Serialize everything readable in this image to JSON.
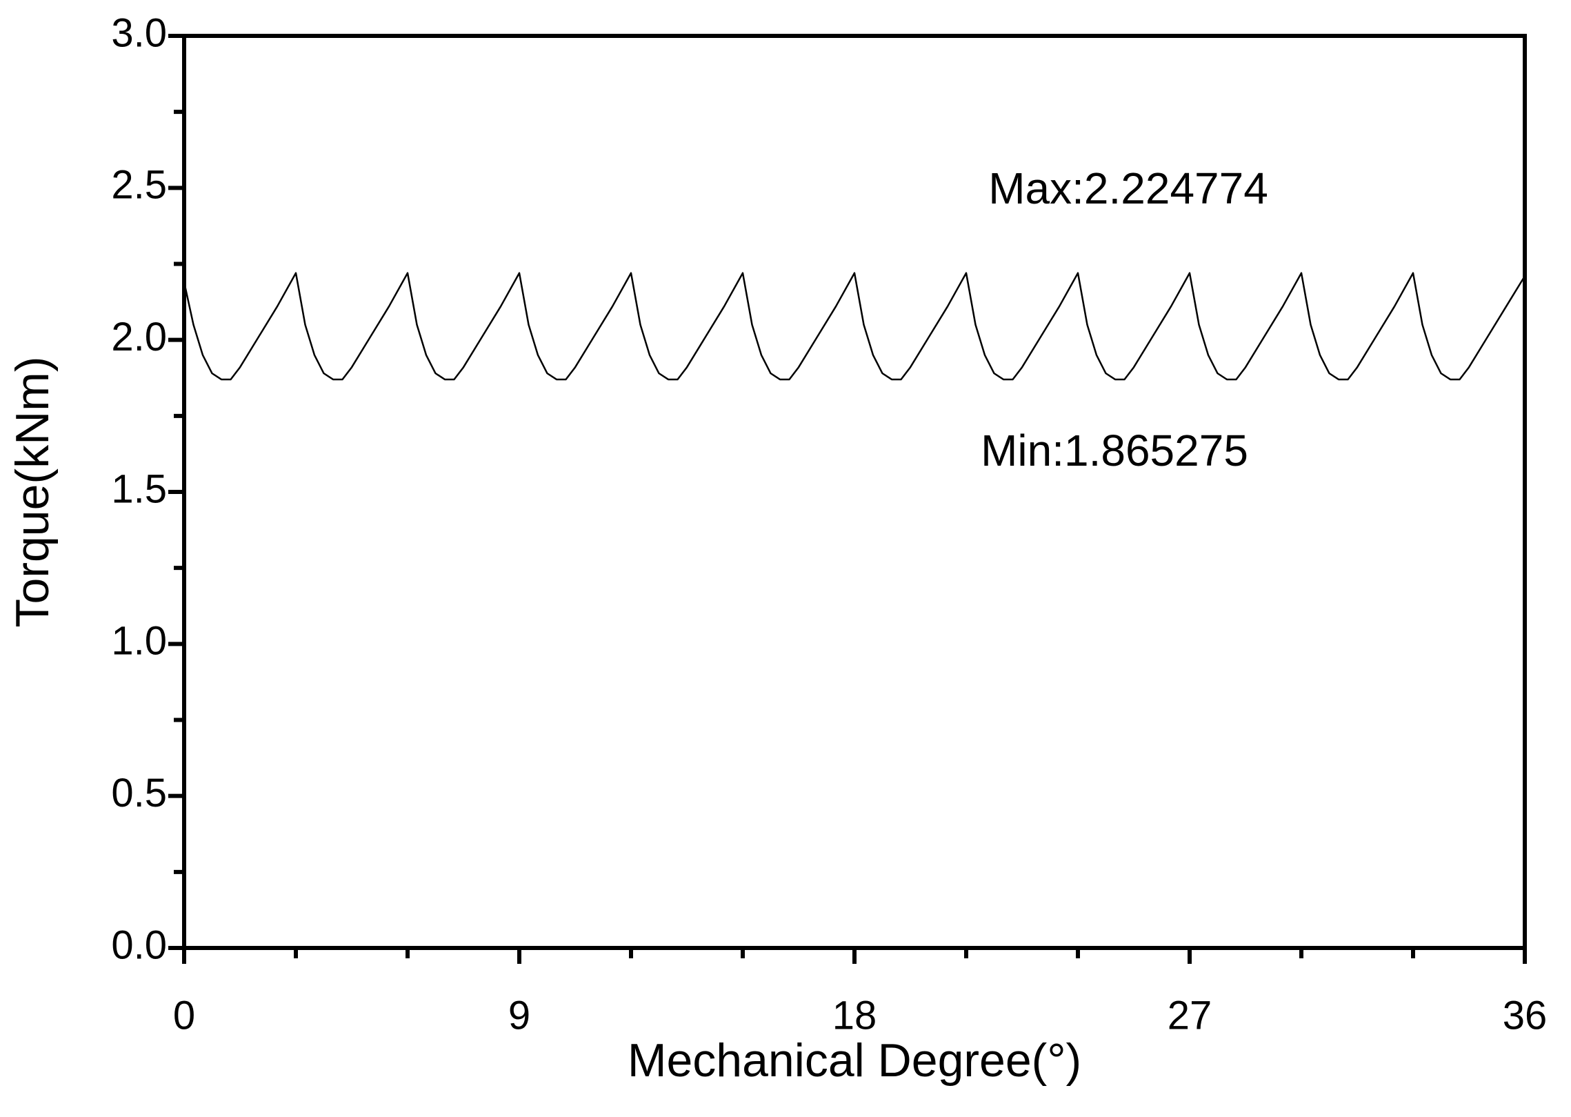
{
  "chart_data": {
    "type": "line",
    "xlabel": "Mechanical Degree(°)",
    "ylabel": "Torque(kNm)",
    "annotations": [
      "Max:2.224774",
      "Min:1.865275"
    ],
    "x": [
      0,
      0.25,
      0.5,
      0.75,
      1,
      1.25,
      1.5,
      2,
      2.5,
      3,
      3.25,
      3.5,
      3.75,
      4,
      4.25,
      4.5,
      5,
      5.5,
      6,
      6.25,
      6.5,
      6.75,
      7,
      7.25,
      7.5,
      8,
      8.5,
      9,
      9.25,
      9.5,
      9.75,
      10,
      10.25,
      10.5,
      11,
      11.5,
      12,
      12.25,
      12.5,
      12.75,
      13,
      13.25,
      13.5,
      14,
      14.5,
      15,
      15.25,
      15.5,
      15.75,
      16,
      16.25,
      16.5,
      17,
      17.5,
      18,
      18.25,
      18.5,
      18.75,
      19,
      19.25,
      19.5,
      20,
      20.5,
      21,
      21.25,
      21.5,
      21.75,
      22,
      22.25,
      22.5,
      23,
      23.5,
      24,
      24.25,
      24.5,
      24.75,
      25,
      25.25,
      25.5,
      26,
      26.5,
      27,
      27.25,
      27.5,
      27.75,
      28,
      28.25,
      28.5,
      29,
      29.5,
      30,
      30.25,
      30.5,
      30.75,
      31,
      31.25,
      31.5,
      32,
      32.5,
      33,
      33.25,
      33.5,
      33.75,
      34,
      34.25,
      34.5,
      35,
      35.5,
      36
    ],
    "series": [
      {
        "color": "#000000",
        "values": [
          2.19,
          2.05,
          1.95,
          1.89,
          1.87,
          1.87,
          1.91,
          2.01,
          2.11,
          2.22,
          2.05,
          1.95,
          1.89,
          1.87,
          1.87,
          1.91,
          2.01,
          2.11,
          2.22,
          2.05,
          1.95,
          1.89,
          1.87,
          1.87,
          1.91,
          2.01,
          2.11,
          2.22,
          2.05,
          1.95,
          1.89,
          1.87,
          1.87,
          1.91,
          2.01,
          2.11,
          2.22,
          2.05,
          1.95,
          1.89,
          1.87,
          1.87,
          1.91,
          2.01,
          2.11,
          2.22,
          2.05,
          1.95,
          1.89,
          1.87,
          1.87,
          1.91,
          2.01,
          2.11,
          2.22,
          2.05,
          1.95,
          1.89,
          1.87,
          1.87,
          1.91,
          2.01,
          2.11,
          2.22,
          2.05,
          1.95,
          1.89,
          1.87,
          1.87,
          1.91,
          2.01,
          2.11,
          2.22,
          2.05,
          1.95,
          1.89,
          1.87,
          1.87,
          1.91,
          2.01,
          2.11,
          2.22,
          2.05,
          1.95,
          1.89,
          1.87,
          1.87,
          1.91,
          2.01,
          2.11,
          2.22,
          2.05,
          1.95,
          1.89,
          1.87,
          1.87,
          1.91,
          2.01,
          2.11,
          2.22,
          2.05,
          1.95,
          1.89,
          1.87,
          1.87,
          1.91,
          2.01,
          2.11,
          2.21
        ]
      }
    ],
    "xlim": [
      0,
      36
    ],
    "xticks": [
      0,
      9,
      18,
      27,
      36
    ],
    "ylim": [
      0,
      3
    ],
    "yticks": [
      {
        "value": 0,
        "label": "0.0"
      },
      0.5,
      {
        "value": 1,
        "label": "1.0"
      },
      1.5,
      {
        "value": 2,
        "label": "2.0"
      },
      2.5,
      {
        "value": 3,
        "label": "3.0"
      }
    ],
    "grid": false
  }
}
